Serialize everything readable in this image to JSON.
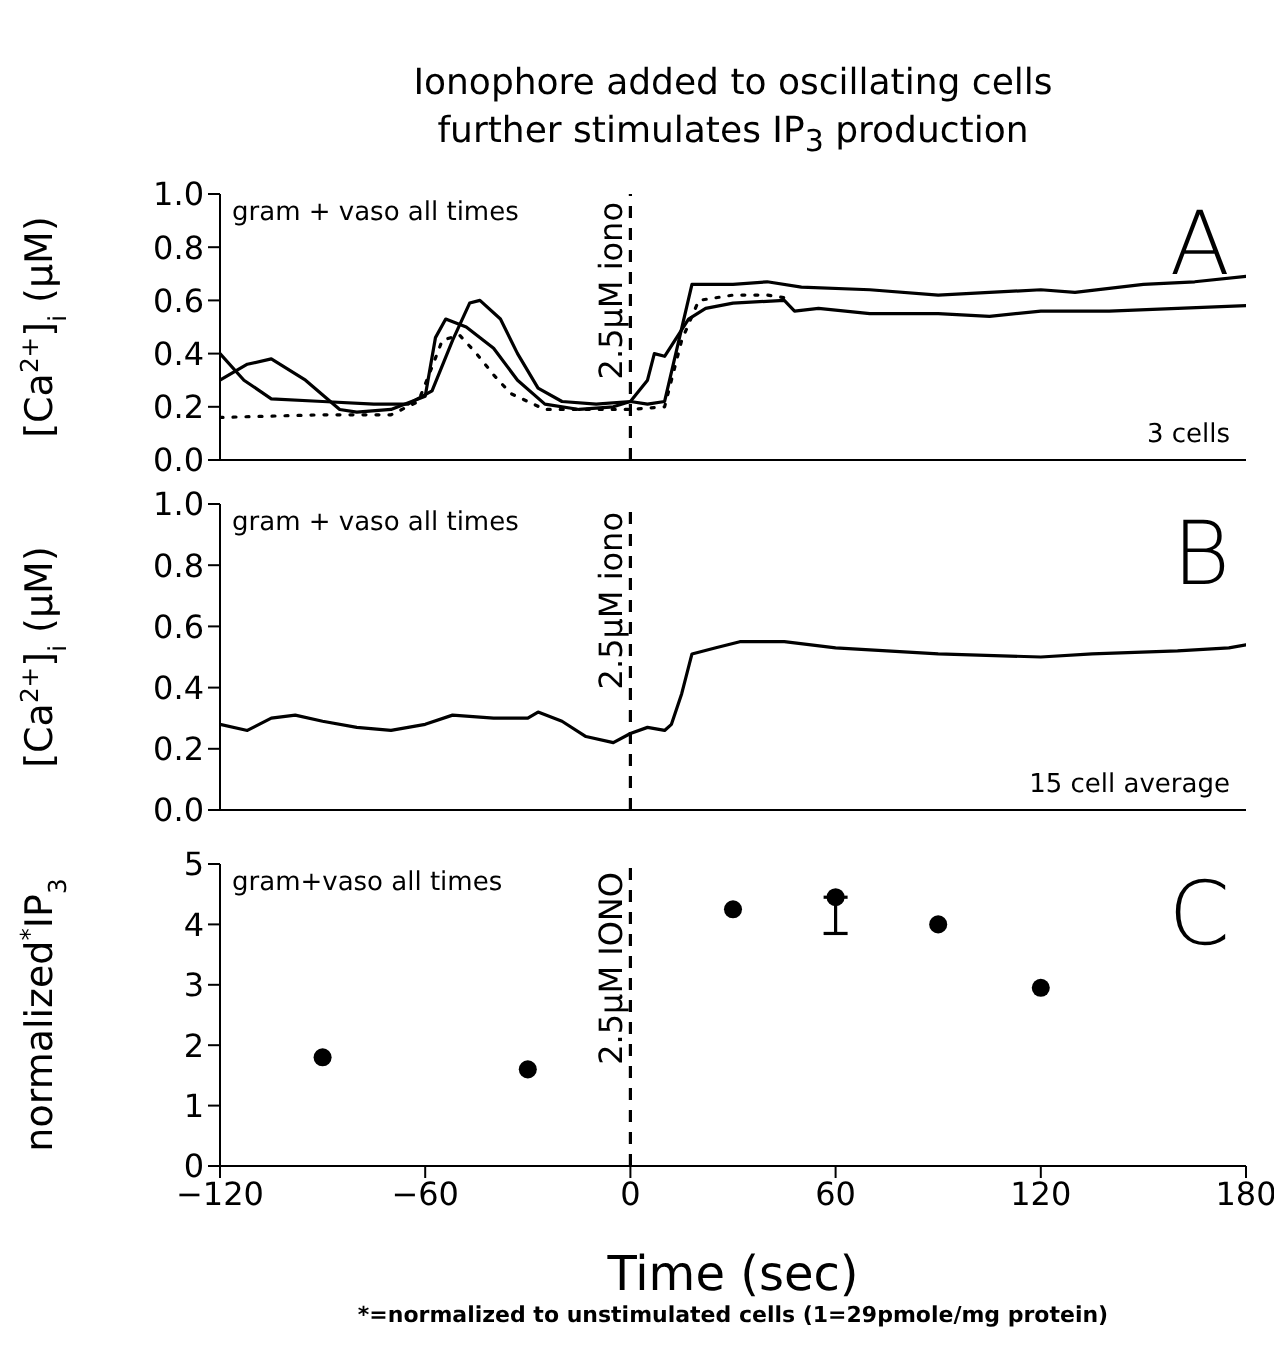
{
  "chart_data": [
    {
      "type": "line",
      "title": "Ionophore added to oscillating cells\nfurther stimulates IP$_{3}$ production",
      "ylabel": "[Ca$^{2+}$]$_{i}$ (μM)",
      "xlim": [
        -120,
        180
      ],
      "xticks": [
        {
          "value": -120,
          "label": null
        },
        {
          "value": -60,
          "label": null
        },
        {
          "value": 0,
          "label": null
        },
        {
          "value": 60,
          "label": null
        },
        {
          "value": 120,
          "label": null
        },
        {
          "value": 180,
          "label": null
        }
      ],
      "ylim": [
        0,
        1
      ],
      "yticks": [
        {
          "value": 0,
          "label": "0.0"
        },
        {
          "value": 0.2,
          "label": "0.2"
        },
        {
          "value": 0.4,
          "label": "0.4"
        },
        {
          "value": 0.6,
          "label": "0.6"
        },
        {
          "value": 0.8,
          "label": "0.8"
        },
        {
          "value": 1,
          "label": "1.0"
        }
      ],
      "tick_labels": "y",
      "marker": "none",
      "ref_lines": [
        {
          "axis": "x",
          "value": 0,
          "label": "2.5μM iono",
          "color": "#000000",
          "line_style": "dashed"
        }
      ],
      "annotations": [
        "gram + vaso all times",
        "A",
        "3 cells"
      ],
      "series": [
        {
          "color": "#000000",
          "line_style": "solid",
          "x": [
            -120,
            -113,
            -105,
            -90,
            -75,
            -65,
            -58,
            -52,
            -47,
            -44,
            -38,
            -33,
            -27,
            -20,
            -10,
            0,
            5,
            7,
            10,
            17,
            22,
            30,
            45,
            48,
            55,
            70,
            90,
            105,
            120,
            140,
            160,
            180
          ],
          "values": [
            0.4,
            0.3,
            0.23,
            0.22,
            0.21,
            0.21,
            0.26,
            0.45,
            0.59,
            0.6,
            0.53,
            0.4,
            0.27,
            0.22,
            0.21,
            0.22,
            0.3,
            0.4,
            0.39,
            0.53,
            0.57,
            0.59,
            0.6,
            0.56,
            0.57,
            0.55,
            0.55,
            0.54,
            0.56,
            0.56,
            0.57,
            0.58
          ]
        },
        {
          "color": "#000000",
          "line_style": "solid",
          "x": [
            -120,
            -112,
            -105,
            -95,
            -85,
            -80,
            -70,
            -60,
            -57,
            -54,
            -48,
            -40,
            -33,
            -25,
            -15,
            -5,
            0,
            5,
            10,
            18,
            30,
            40,
            50,
            70,
            90,
            105,
            120,
            130,
            150,
            165,
            180
          ],
          "values": [
            0.3,
            0.36,
            0.38,
            0.3,
            0.19,
            0.18,
            0.19,
            0.24,
            0.46,
            0.53,
            0.5,
            0.42,
            0.3,
            0.21,
            0.19,
            0.2,
            0.22,
            0.21,
            0.22,
            0.66,
            0.66,
            0.67,
            0.65,
            0.64,
            0.62,
            0.63,
            0.64,
            0.63,
            0.66,
            0.67,
            0.69
          ]
        },
        {
          "color": "#000000",
          "line_style": "dotted",
          "x": [
            -120,
            -90,
            -70,
            -62,
            -58,
            -55,
            -50,
            -45,
            -40,
            -35,
            -25,
            -10,
            0,
            10,
            15,
            20,
            30,
            40,
            45
          ],
          "values": [
            0.16,
            0.17,
            0.17,
            0.22,
            0.35,
            0.45,
            0.47,
            0.4,
            0.32,
            0.25,
            0.19,
            0.19,
            0.19,
            0.2,
            0.45,
            0.6,
            0.62,
            0.62,
            0.61
          ]
        }
      ]
    },
    {
      "type": "line",
      "ylabel": "[Ca$^{2+}$]$_{i}$ (μM)",
      "xlim": [
        -120,
        180
      ],
      "xticks": [
        {
          "value": -120,
          "label": null
        },
        {
          "value": -60,
          "label": null
        },
        {
          "value": 0,
          "label": null
        },
        {
          "value": 60,
          "label": null
        },
        {
          "value": 120,
          "label": null
        },
        {
          "value": 180,
          "label": null
        }
      ],
      "ylim": [
        0,
        1
      ],
      "yticks": [
        {
          "value": 0,
          "label": "0.0"
        },
        {
          "value": 0.2,
          "label": "0.2"
        },
        {
          "value": 0.4,
          "label": "0.4"
        },
        {
          "value": 0.6,
          "label": "0.6"
        },
        {
          "value": 0.8,
          "label": "0.8"
        },
        {
          "value": 1,
          "label": "1.0"
        }
      ],
      "tick_labels": "y",
      "marker": "none",
      "ref_lines": [
        {
          "axis": "x",
          "value": 0,
          "label": "2.5μM iono",
          "color": "#000000",
          "line_style": "dashed"
        }
      ],
      "annotations": [
        "gram + vaso all times",
        "B",
        "15 cell average"
      ],
      "series": [
        {
          "color": "#000000",
          "line_style": "solid",
          "x": [
            -120,
            -112,
            -105,
            -98,
            -90,
            -80,
            -70,
            -60,
            -52,
            -40,
            -30,
            -27,
            -20,
            -13,
            -5,
            0,
            5,
            10,
            12,
            15,
            18,
            25,
            32,
            45,
            60,
            75,
            90,
            120,
            135,
            160,
            175,
            180
          ],
          "values": [
            0.28,
            0.26,
            0.3,
            0.31,
            0.29,
            0.27,
            0.26,
            0.28,
            0.31,
            0.3,
            0.3,
            0.32,
            0.29,
            0.24,
            0.22,
            0.25,
            0.27,
            0.26,
            0.28,
            0.38,
            0.51,
            0.53,
            0.55,
            0.55,
            0.53,
            0.52,
            0.51,
            0.5,
            0.51,
            0.52,
            0.53,
            0.54
          ]
        }
      ]
    },
    {
      "type": "scatter",
      "ylabel": "normalized$^{*}$IP$_{3}$",
      "xlabel": "Time (sec)",
      "xlim": [
        -120,
        180
      ],
      "xticks": [
        {
          "value": -120,
          "label": "−120"
        },
        {
          "value": -60,
          "label": "−60"
        },
        0,
        60,
        120,
        180
      ],
      "ylim": [
        0,
        5
      ],
      "yticks": [
        0,
        1,
        2,
        3,
        4,
        5
      ],
      "marker": "circle",
      "ref_lines": [
        {
          "axis": "x",
          "value": 0,
          "label": "2.5μM IONO",
          "color": "#000000",
          "line_style": "dashed"
        }
      ],
      "annotations": [
        "gram+vaso all times",
        "C",
        "*=normalized to unstimulated cells (1=29pmole/mg protein)"
      ],
      "series": [
        {
          "color": "#000000",
          "x": [
            -90,
            -30,
            30,
            60,
            90,
            120
          ],
          "values": [
            1.8,
            1.6,
            4.25,
            4.45,
            4.0,
            2.95
          ],
          "errors": [
            null,
            null,
            null,
            [
              3.85,
              4.45
            ],
            null,
            null
          ]
        }
      ]
    }
  ]
}
